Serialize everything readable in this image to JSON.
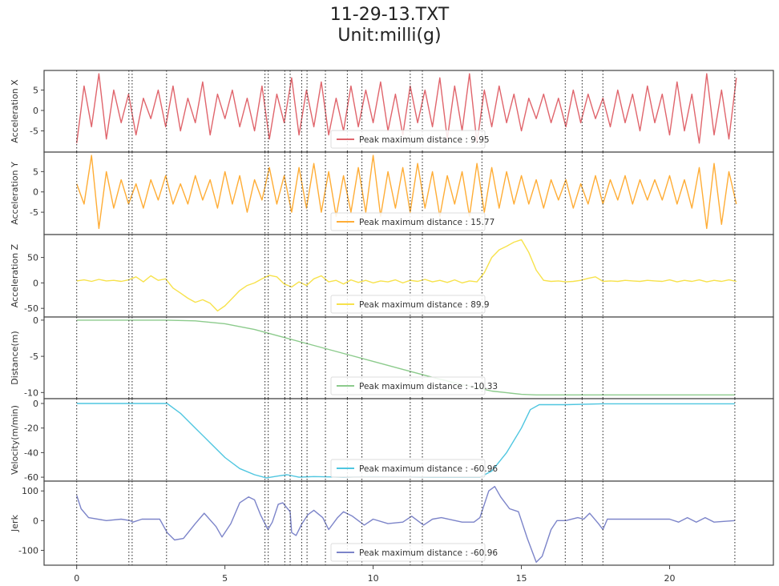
{
  "chart_data": {
    "type": "line",
    "title": "11-29-13.TXT",
    "subtitle": "Unit:milli(g)",
    "xlim": [
      -1.1,
      23.5
    ],
    "xticks": [
      0,
      5,
      10,
      15,
      20
    ],
    "grid": false,
    "legend_placement": "lower center",
    "event_lines_x": [
      0,
      1.76,
      1.87,
      3.03,
      6.35,
      6.46,
      7.02,
      7.2,
      7.59,
      7.77,
      8.39,
      9.13,
      9.62,
      11.25,
      11.66,
      13.67,
      16.48,
      17.05,
      17.75,
      22.2
    ],
    "panels": [
      {
        "ylabel": "Acceleration X",
        "color": "#e0656c",
        "ylim": [
          -10.2,
          9.8
        ],
        "yticks": [
          5,
          0,
          -5
        ],
        "legend": "Peak maximum distance : 9.95",
        "x_step": 0.25,
        "values": [
          -8,
          6,
          -4,
          9,
          -7,
          5,
          -3,
          4,
          -6,
          3,
          -2,
          5,
          -4,
          6,
          -5,
          3,
          -3,
          7,
          -6,
          4,
          -2,
          5,
          -4,
          3,
          -5,
          6,
          -7,
          4,
          -3,
          8,
          -6,
          5,
          -4,
          7,
          -6,
          3,
          -5,
          6,
          -4,
          5,
          -3,
          7,
          -5,
          4,
          -6,
          6,
          -3,
          5,
          -4,
          8,
          -7,
          6,
          -5,
          9,
          -8,
          5,
          -4,
          6,
          -3,
          4,
          -5,
          3,
          -2,
          4,
          -3,
          3,
          -4,
          5,
          -3,
          4,
          -2,
          3,
          -4,
          5,
          -3,
          4,
          -5,
          6,
          -3,
          4,
          -6,
          7,
          -5,
          4,
          -8,
          9,
          -6,
          5,
          -7,
          8
        ]
      },
      {
        "ylabel": "Acceleration Y",
        "color": "#ffad36",
        "ylim": [
          -10.5,
          9.8
        ],
        "yticks": [
          5,
          0,
          -5
        ],
        "legend": "Peak maximum distance : 15.77",
        "x_step": 0.25,
        "values": [
          2,
          -3,
          9,
          -9,
          5,
          -4,
          3,
          -3,
          2,
          -4,
          3,
          -2,
          4,
          -3,
          2,
          -3,
          4,
          -2,
          3,
          -4,
          5,
          -3,
          4,
          -5,
          3,
          -2,
          6,
          -3,
          4,
          -5,
          6,
          -4,
          7,
          -5,
          5,
          -6,
          4,
          -5,
          6,
          -5,
          9,
          -6,
          5,
          -4,
          6,
          -5,
          7,
          -4,
          5,
          -6,
          4,
          -3,
          5,
          -6,
          7,
          -5,
          6,
          -4,
          5,
          -3,
          4,
          -3,
          3,
          -4,
          3,
          -2,
          3,
          -4,
          2,
          -3,
          4,
          -3,
          3,
          -2,
          4,
          -3,
          3,
          -2,
          3,
          -2,
          4,
          -3,
          3,
          -4,
          6,
          -9,
          7,
          -8,
          5,
          -3
        ]
      },
      {
        "ylabel": "Acceleration Z",
        "color": "#f7e24c",
        "ylim": [
          -67,
          95
        ],
        "yticks": [
          50,
          0,
          -50
        ],
        "legend": "Peak maximum distance : 89.9",
        "x_step": 0.25,
        "values": [
          4,
          6,
          3,
          7,
          4,
          5,
          3,
          6,
          12,
          2,
          14,
          5,
          8,
          -10,
          -20,
          -30,
          -38,
          -33,
          -40,
          -55,
          -45,
          -30,
          -15,
          -5,
          0,
          8,
          15,
          12,
          -2,
          -8,
          2,
          -5,
          8,
          14,
          2,
          5,
          -2,
          6,
          1,
          5,
          0,
          4,
          2,
          6,
          0,
          5,
          3,
          7,
          2,
          5,
          1,
          6,
          0,
          4,
          2,
          20,
          50,
          65,
          72,
          80,
          85,
          60,
          25,
          5,
          3,
          4,
          2,
          3,
          5,
          9,
          12,
          3,
          4,
          3,
          5,
          4,
          3,
          5,
          4,
          3,
          6,
          2,
          5,
          3,
          6,
          2,
          5,
          3,
          6,
          3
        ]
      },
      {
        "ylabel": "Distance(m)",
        "color": "#8ccb8c",
        "ylim": [
          -10.85,
          0.43
        ],
        "yticks": [
          0,
          -5,
          -10
        ],
        "legend": "Peak maximum distance : -10.33",
        "x": [
          0,
          3,
          4,
          5,
          6,
          7,
          8,
          9,
          10,
          11,
          12,
          13,
          14,
          15,
          15.5,
          22.2
        ],
        "values": [
          0,
          0,
          -0.1,
          -0.5,
          -1.3,
          -2.4,
          -3.5,
          -4.6,
          -5.7,
          -6.8,
          -7.9,
          -8.9,
          -9.8,
          -10.25,
          -10.33,
          -10.33
        ]
      },
      {
        "ylabel": "Velocity(m/min)",
        "color": "#4fc6e0",
        "ylim": [
          -63.2,
          3.9
        ],
        "yticks": [
          0,
          -20,
          -40,
          -60
        ],
        "legend": "Peak maximum distance : -60.96",
        "x": [
          0,
          3.05,
          3.5,
          4,
          4.5,
          5,
          5.5,
          6,
          6.4,
          6.8,
          7.1,
          7.5,
          8,
          9,
          10,
          12,
          13.6,
          14,
          14.5,
          15,
          15.3,
          15.6,
          16.5,
          17.7,
          22.2
        ],
        "values": [
          0,
          0,
          -8,
          -20,
          -32,
          -44,
          -53,
          -58,
          -60.5,
          -59,
          -58,
          -60,
          -59.5,
          -60,
          -59.5,
          -60,
          -60,
          -55,
          -40,
          -20,
          -5,
          -1,
          -1,
          -0.3,
          -0.3
        ]
      },
      {
        "ylabel": "Jerk",
        "color": "#7c84c9",
        "ylim": [
          -150,
          133
        ],
        "yticks": [
          100,
          0,
          -100
        ],
        "legend": "Peak maximum distance : -60.96",
        "x": [
          0,
          0.15,
          0.4,
          1,
          1.5,
          1.8,
          1.9,
          2.2,
          2.8,
          3.05,
          3.3,
          3.6,
          4,
          4.3,
          4.7,
          4.9,
          5.2,
          5.5,
          5.8,
          6,
          6.2,
          6.45,
          6.6,
          6.8,
          6.95,
          7.2,
          7.25,
          7.4,
          7.6,
          7.8,
          8,
          8.3,
          8.5,
          8.8,
          9,
          9.3,
          9.7,
          10,
          10.5,
          11,
          11.3,
          11.7,
          12,
          12.3,
          13,
          13.4,
          13.6,
          13.9,
          14.1,
          14.3,
          14.6,
          14.9,
          15.2,
          15.5,
          15.7,
          16,
          16.2,
          16.5,
          16.9,
          17.1,
          17.3,
          17.6,
          17.75,
          17.9,
          19,
          20,
          20.3,
          20.6,
          20.9,
          21.2,
          21.5,
          22.2
        ],
        "values": [
          85,
          40,
          10,
          0,
          5,
          0,
          -5,
          5,
          5,
          -40,
          -65,
          -60,
          -10,
          25,
          -20,
          -55,
          -10,
          60,
          80,
          70,
          20,
          -30,
          -5,
          55,
          60,
          30,
          -40,
          -50,
          -10,
          20,
          35,
          10,
          -30,
          10,
          30,
          15,
          -15,
          5,
          -10,
          -5,
          15,
          -15,
          5,
          10,
          -5,
          -5,
          10,
          100,
          115,
          80,
          40,
          30,
          -60,
          -140,
          -120,
          -30,
          0,
          0,
          10,
          5,
          25,
          -10,
          -30,
          5,
          5,
          5,
          -5,
          10,
          -5,
          10,
          -5,
          0
        ]
      }
    ]
  }
}
